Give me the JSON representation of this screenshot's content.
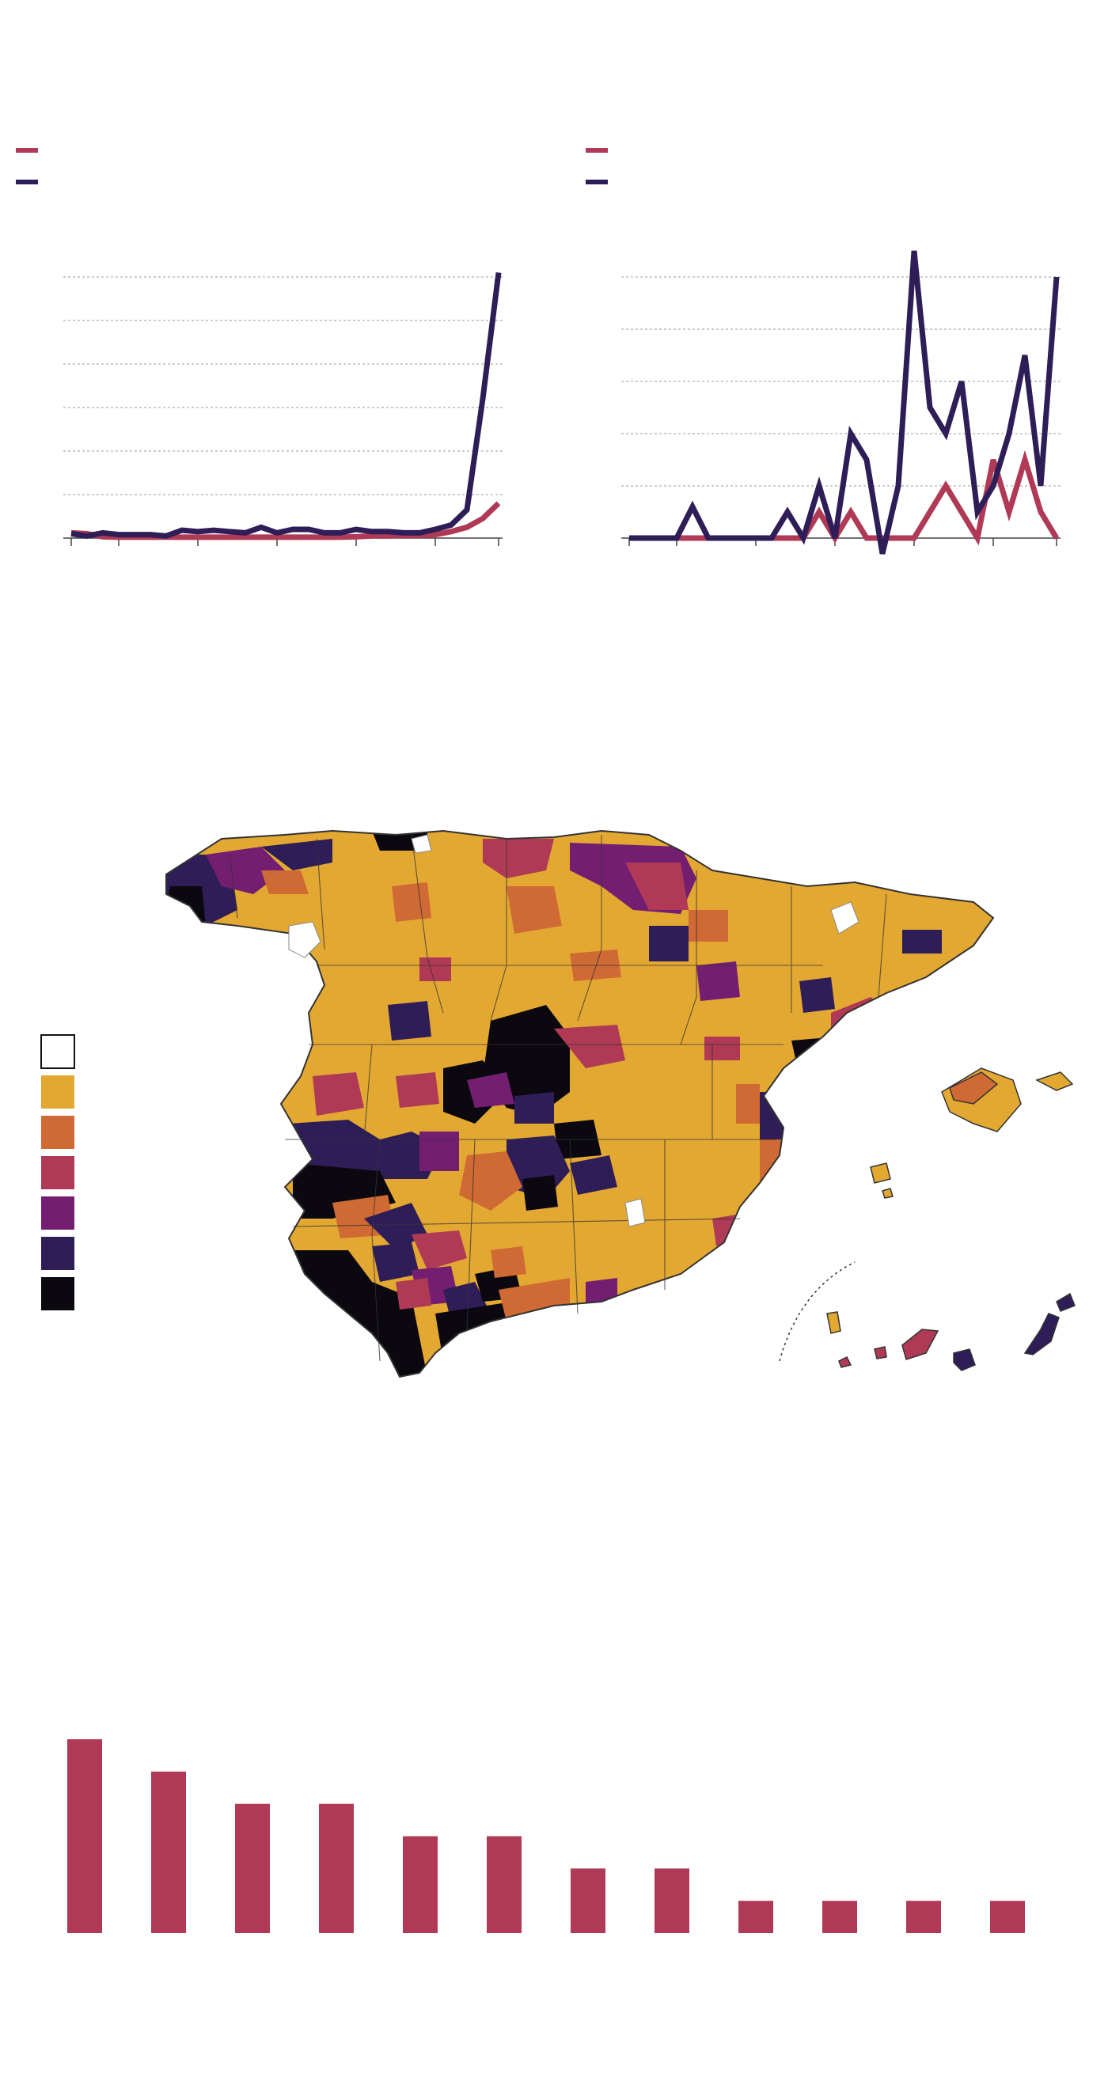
{
  "colors": {
    "crimson": "#b03a55",
    "navy": "#2e1d57",
    "grid": "#9a9a9a",
    "axis": "#444444",
    "map_yellow": "#e3a832",
    "map_orange": "#d06a35",
    "map_crimson": "#b03a55",
    "map_purple": "#741e72",
    "map_navy": "#2e1d57",
    "map_black": "#0b0810",
    "map_white": "#ffffff",
    "map_border": "#333333"
  },
  "chart_data": [
    {
      "type": "line",
      "legend_placement": "top-left",
      "grid": true,
      "ylim": [
        0,
        6
      ],
      "x": [
        0,
        1,
        2,
        3,
        4,
        5,
        6,
        7,
        8,
        9,
        10,
        11,
        12,
        13,
        14,
        15,
        16,
        17,
        18,
        19,
        20,
        21,
        22,
        23,
        24,
        25,
        26,
        27
      ],
      "series": [
        {
          "color": "#b03a55",
          "values": [
            0.12,
            0.1,
            0.03,
            0.02,
            0.02,
            0.02,
            0.02,
            0.02,
            0.02,
            0.02,
            0.02,
            0.02,
            0.02,
            0.02,
            0.02,
            0.02,
            0.02,
            0.02,
            0.03,
            0.05,
            0.05,
            0.06,
            0.06,
            0.08,
            0.15,
            0.25,
            0.45,
            0.8
          ]
        },
        {
          "color": "#2e1d57",
          "values": [
            0.1,
            0.05,
            0.12,
            0.08,
            0.08,
            0.08,
            0.05,
            0.18,
            0.15,
            0.18,
            0.15,
            0.12,
            0.25,
            0.12,
            0.2,
            0.2,
            0.12,
            0.12,
            0.2,
            0.15,
            0.15,
            0.12,
            0.12,
            0.2,
            0.3,
            0.65,
            3.2,
            6.1
          ]
        }
      ]
    },
    {
      "type": "line",
      "legend_placement": "top-left",
      "grid": true,
      "ylim": [
        0,
        5
      ],
      "x": [
        0,
        1,
        2,
        3,
        4,
        5,
        6,
        7,
        8,
        9,
        10,
        11,
        12,
        13,
        14,
        15,
        16,
        17,
        18,
        19,
        20,
        21,
        22,
        23,
        24,
        25,
        26,
        27
      ],
      "series": [
        {
          "color": "#b03a55",
          "values": [
            0,
            0,
            0,
            0,
            0,
            0,
            0,
            0,
            0,
            0,
            0,
            0,
            0.5,
            0,
            0.5,
            0,
            0,
            0,
            0,
            0.5,
            1,
            0.5,
            0,
            1.5,
            0.5,
            1.5,
            0.5,
            0
          ]
        },
        {
          "color": "#2e1d57",
          "values": [
            0,
            0,
            0,
            0,
            0.6,
            0,
            0,
            0,
            0,
            0,
            0.5,
            0,
            1,
            0,
            2,
            1.5,
            -0.3,
            1,
            5.5,
            2.5,
            2,
            3,
            0.5,
            1,
            2,
            3.5,
            1,
            5
          ]
        }
      ]
    },
    {
      "type": "bar",
      "ylim": [
        0,
        6
      ],
      "categories": [
        "",
        "",
        "",
        "",
        "",
        "",
        "",
        "",
        "",
        "",
        "",
        ""
      ],
      "values": [
        6,
        5,
        4,
        4,
        3,
        3,
        2,
        2,
        1,
        1,
        1,
        1
      ],
      "color": "#b03a55"
    }
  ],
  "map_legend": [
    "#ffffff",
    "#e3a832",
    "#d06a35",
    "#b03a55",
    "#741e72",
    "#2e1d57",
    "#0b0810"
  ]
}
